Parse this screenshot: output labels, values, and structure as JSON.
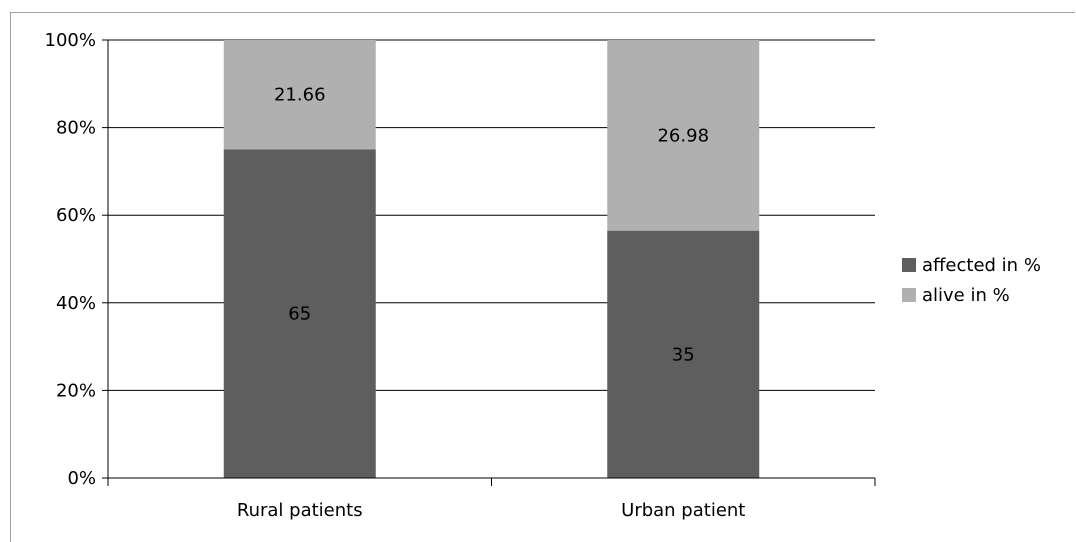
{
  "chart_data": {
    "type": "bar",
    "stacked": true,
    "normalized": true,
    "categories": [
      "Rural patients",
      "Urban patient"
    ],
    "series": [
      {
        "name": "affected in %",
        "values": [
          65,
          35
        ],
        "color": "#5e5e5e"
      },
      {
        "name": "alive in %",
        "values": [
          21.66,
          26.98
        ],
        "color": "#b0b0b0"
      }
    ],
    "y_ticks": [
      "0%",
      "20%",
      "40%",
      "60%",
      "80%",
      "100%"
    ],
    "ylim": [
      0,
      100
    ],
    "grid": true,
    "legend_position": "right",
    "title": "",
    "xlabel": "",
    "ylabel": ""
  }
}
